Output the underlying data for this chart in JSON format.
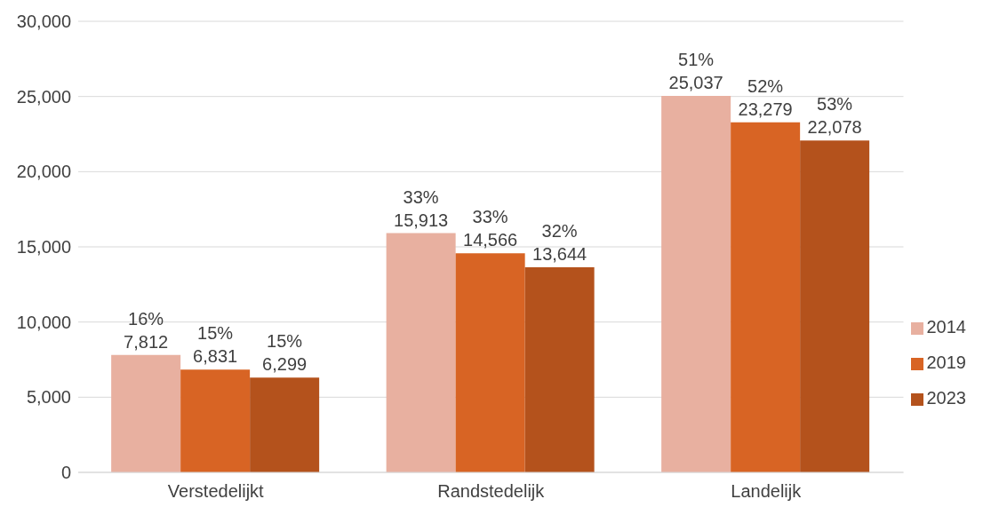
{
  "chart_data": {
    "type": "bar",
    "categories": [
      "Verstedelijkt",
      "Randstedelijk",
      "Landelijk"
    ],
    "series": [
      {
        "name": "2014",
        "color": "#e8b0a0",
        "values": [
          7812,
          15913,
          25037
        ],
        "value_labels": [
          "16%\n7,812",
          "33%\n15,913",
          "51%\n25,037"
        ]
      },
      {
        "name": "2019",
        "color": "#d86424",
        "values": [
          6831,
          14566,
          23279
        ],
        "value_labels": [
          "15%\n6,831",
          "33%\n14,566",
          "52%\n23,279"
        ]
      },
      {
        "name": "2023",
        "color": "#b4521c",
        "values": [
          6299,
          13644,
          22078
        ],
        "value_labels": [
          "15%\n6,299",
          "32%\n13,644",
          "53%\n22,078"
        ]
      }
    ],
    "ylim": [
      0,
      30000
    ],
    "yticks": [
      {
        "value": 0,
        "label": "0"
      },
      {
        "value": 5000,
        "label": "5,000"
      },
      {
        "value": 10000,
        "label": "10,000"
      },
      {
        "value": 15000,
        "label": "15,000"
      },
      {
        "value": 20000,
        "label": "20,000"
      },
      {
        "value": 25000,
        "label": "25,000"
      },
      {
        "value": 30000,
        "label": "30,000"
      }
    ],
    "grid": "y",
    "legend": "right"
  }
}
